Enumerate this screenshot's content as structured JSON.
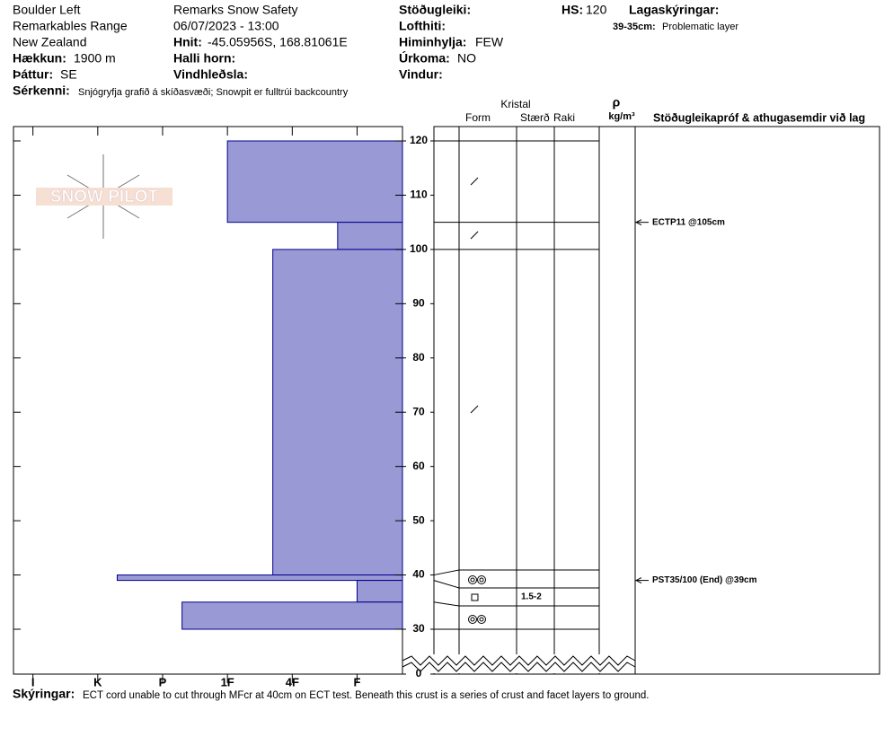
{
  "header": {
    "location": [
      "Boulder Left",
      "Remarkables Range",
      "New Zealand"
    ],
    "elevation": {
      "label": "Hækkun:",
      "value": "1900 m"
    },
    "aspect": {
      "label": "Þáttur:",
      "value": "SE"
    },
    "observer": "Remarks Snow Safety",
    "datetime": "06/07/2023 - 13:00",
    "coords": {
      "label": "Hnit:",
      "value": "-45.05956S, 168.81061E"
    },
    "slope": {
      "label": "Halli horn:"
    },
    "wind_loading": {
      "label": "Vindhleðsla:"
    },
    "stability": {
      "label": "Stöðugleiki:"
    },
    "air_temp": {
      "label": "Lofthiti:"
    },
    "sky": {
      "label": "Himinhylja:",
      "value": "FEW"
    },
    "precip": {
      "label": "Úrkoma:",
      "value": "NO"
    },
    "wind": {
      "label": "Vindur:"
    },
    "hs": {
      "label": "HS:",
      "value": 120
    },
    "legend_title": "Lagaskýringar:",
    "legend_items": [
      {
        "range": "39-35cm:",
        "text": "Problematic layer"
      }
    ],
    "features": {
      "label": "Sérkenni:",
      "value": "Snjógryfja grafið á skíðasvæði;  Snowpit er fulltrúi backcountry"
    }
  },
  "watermark": "SNOW PILOT",
  "columns": {
    "crystal": "Kristal",
    "form": "Form",
    "size": "Stærð",
    "moisture": "Raki",
    "density_symbol": "ρ",
    "density_unit": "kg/m³",
    "tests": "Stöðugleikapróf & athugasemdir við lag"
  },
  "profile": {
    "xlim": [
      6.3,
      0.3
    ],
    "hardness_ticks": [
      {
        "value": 6,
        "label": "I"
      },
      {
        "value": 5,
        "label": "K"
      },
      {
        "value": 4,
        "label": "P"
      },
      {
        "value": 3,
        "label": "1F"
      },
      {
        "value": 2,
        "label": "4F"
      },
      {
        "value": 1,
        "label": "F"
      }
    ],
    "ylim": [
      120,
      30
    ],
    "depth_ticks": [
      120,
      110,
      100,
      90,
      80,
      70,
      60,
      50,
      40,
      30,
      0
    ],
    "layers": [
      {
        "top": 120,
        "bottom": 105,
        "hardness": 3
      },
      {
        "top": 105,
        "bottom": 100,
        "hardness": 1.3
      },
      {
        "top": 100,
        "bottom": 40,
        "hardness": 2.3
      },
      {
        "top": 40,
        "bottom": 39,
        "hardness": 4.7
      },
      {
        "top": 39,
        "bottom": 35,
        "hardness": 1,
        "size": "1.5-2"
      },
      {
        "top": 35,
        "bottom": 30,
        "hardness": 3.7
      }
    ],
    "tests": [
      {
        "depth": 105,
        "text": "ECTP11 @105cm"
      },
      {
        "depth": 39,
        "text": "PST35/100 (End) @39cm"
      }
    ]
  },
  "notes": {
    "label": "Skýringar:",
    "value": "ECT cord unable to cut through MFcr at 40cm on ECT test. Beneath this crust is a series of crust and facet layers to ground."
  }
}
